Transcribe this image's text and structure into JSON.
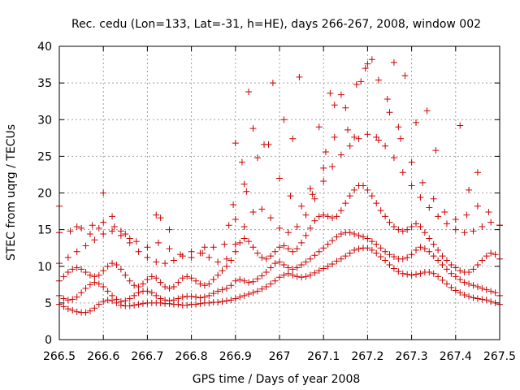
{
  "chart_data": {
    "type": "scatter",
    "title": "Rec. cedu (Lon=133, Lat=-31, h=HE), days 266-267, 2008, window 002",
    "xlabel": "GPS time / Days of year 2008",
    "ylabel": "STEC from uqrg / TECUs",
    "xlim": [
      266.5,
      267.5
    ],
    "ylim": [
      0,
      40
    ],
    "x_ticks": [
      "266.5",
      "266.6",
      "266.7",
      "266.8",
      "266.9",
      "267",
      "267.1",
      "267.2",
      "267.3",
      "267.4",
      "267.5"
    ],
    "y_ticks": [
      "0",
      "5",
      "10",
      "15",
      "20",
      "25",
      "30",
      "35",
      "40"
    ],
    "grid": true,
    "legend": "none",
    "marker": "plus",
    "color": "#cc0000",
    "series": [
      {
        "x": [
          266.5,
          266.51,
          266.52,
          266.53,
          266.54,
          266.55,
          266.56,
          266.57,
          266.58,
          266.59,
          266.6,
          266.61,
          266.62,
          266.63,
          266.64,
          266.65,
          266.66,
          266.67,
          266.68,
          266.69,
          266.7,
          266.71,
          266.72,
          266.73,
          266.74,
          266.75,
          266.76,
          266.77,
          266.78,
          266.79,
          266.8,
          266.81,
          266.82,
          266.83,
          266.84,
          266.85,
          266.86,
          266.87,
          266.88,
          266.89,
          266.9,
          266.91,
          266.92,
          266.93,
          266.94,
          266.95,
          266.96,
          266.97,
          266.98,
          266.99,
          267.0,
          267.01,
          267.02,
          267.03,
          267.04,
          267.05,
          267.06,
          267.07,
          267.08,
          267.09,
          267.1,
          267.11,
          267.12,
          267.13,
          267.14,
          267.15,
          267.16,
          267.17,
          267.18,
          267.19,
          267.2,
          267.21,
          267.22,
          267.23,
          267.24,
          267.25,
          267.26,
          267.27,
          267.28,
          267.29,
          267.3,
          267.31,
          267.32,
          267.33,
          267.34,
          267.35,
          267.36,
          267.37,
          267.38,
          267.39,
          267.4,
          267.41,
          267.42,
          267.43,
          267.44,
          267.45,
          267.46,
          267.47,
          267.48,
          267.49,
          267.5
        ],
        "y": [
          4.8,
          4.5,
          4.2,
          4.0,
          3.8,
          3.7,
          3.7,
          3.9,
          4.3,
          4.8,
          5.2,
          5.4,
          5.3,
          5.0,
          4.7,
          4.6,
          4.6,
          4.7,
          4.8,
          4.9,
          5.0,
          5.0,
          5.0,
          5.0,
          4.9,
          4.9,
          4.8,
          4.8,
          4.7,
          4.7,
          4.8,
          4.8,
          4.9,
          5.0,
          5.0,
          5.1,
          5.1,
          5.2,
          5.3,
          5.4,
          5.6,
          5.8,
          6.0,
          6.2,
          6.4,
          6.6,
          6.9,
          7.2,
          7.6,
          8.0,
          8.5,
          8.8,
          9.0,
          8.8,
          8.6,
          8.5,
          8.6,
          8.8,
          9.1,
          9.4,
          9.7,
          10.0,
          10.3,
          10.7,
          11.0,
          11.4,
          11.8,
          12.2,
          12.4,
          12.5,
          12.5,
          12.2,
          11.8,
          11.3,
          10.8,
          10.2,
          9.7,
          9.3,
          9.0,
          8.9,
          8.8,
          8.9,
          9.0,
          9.2,
          9.2,
          9.0,
          8.6,
          8.1,
          7.6,
          7.1,
          6.7,
          6.4,
          6.1,
          5.9,
          5.7,
          5.6,
          5.5,
          5.4,
          5.2,
          5.0,
          4.8
        ]
      },
      {
        "x": [
          266.5,
          266.51,
          266.52,
          266.53,
          266.54,
          266.55,
          266.56,
          266.57,
          266.58,
          266.59,
          266.6,
          266.61,
          266.62,
          266.63,
          266.64,
          266.65,
          266.66,
          266.67,
          266.68,
          266.69,
          266.7,
          266.71,
          266.72,
          266.73,
          266.74,
          266.75,
          266.76,
          266.77,
          266.78,
          266.79,
          266.8,
          266.81,
          266.82,
          266.83,
          266.84,
          266.85,
          266.86,
          266.87,
          266.88,
          266.89,
          266.9,
          266.91,
          266.92,
          266.93,
          266.94,
          266.95,
          266.96,
          266.97,
          266.98,
          266.99,
          267.0,
          267.01,
          267.02,
          267.03,
          267.04,
          267.05,
          267.06,
          267.07,
          267.08,
          267.09,
          267.1,
          267.11,
          267.12,
          267.13,
          267.14,
          267.15,
          267.16,
          267.17,
          267.18,
          267.19,
          267.2,
          267.21,
          267.22,
          267.23,
          267.24,
          267.25,
          267.26,
          267.27,
          267.28,
          267.29,
          267.3,
          267.31,
          267.32,
          267.33,
          267.34,
          267.35,
          267.36,
          267.37,
          267.38,
          267.39,
          267.4,
          267.41,
          267.42,
          267.43,
          267.44,
          267.45,
          267.46,
          267.47,
          267.48,
          267.49,
          267.5
        ],
        "y": [
          6.0,
          5.6,
          5.4,
          5.5,
          5.8,
          6.4,
          7.0,
          7.5,
          7.8,
          7.6,
          7.2,
          6.6,
          6.0,
          5.5,
          5.2,
          5.3,
          5.6,
          6.0,
          6.4,
          6.6,
          6.6,
          6.4,
          6.0,
          5.6,
          5.4,
          5.3,
          5.4,
          5.6,
          5.8,
          5.9,
          5.9,
          5.8,
          5.7,
          5.8,
          6.0,
          6.3,
          6.6,
          6.8,
          7.0,
          7.4,
          8.0,
          8.2,
          8.0,
          7.8,
          7.9,
          8.3,
          8.7,
          9.2,
          9.8,
          10.4,
          10.6,
          10.2,
          9.8,
          9.6,
          9.8,
          10.2,
          10.6,
          11.0,
          11.5,
          12.0,
          12.5,
          13.0,
          13.5,
          14.0,
          14.4,
          14.6,
          14.6,
          14.4,
          14.2,
          14.0,
          13.8,
          13.4,
          13.0,
          12.5,
          12.0,
          11.6,
          11.3,
          11.0,
          11.0,
          11.2,
          11.6,
          12.2,
          12.6,
          12.4,
          12.0,
          11.4,
          10.8,
          10.2,
          9.6,
          9.0,
          8.6,
          8.2,
          7.8,
          7.6,
          7.4,
          7.2,
          7.0,
          6.8,
          6.6,
          6.4,
          6.0
        ]
      },
      {
        "x": [
          266.5,
          266.51,
          266.52,
          266.53,
          266.54,
          266.55,
          266.56,
          266.57,
          266.58,
          266.59,
          266.6,
          266.61,
          266.62,
          266.63,
          266.64,
          266.65,
          266.66,
          266.67,
          266.68,
          266.69,
          266.7,
          266.71,
          266.72,
          266.73,
          266.74,
          266.75,
          266.76,
          266.77,
          266.78,
          266.79,
          266.8,
          266.81,
          266.82,
          266.83,
          266.84,
          266.85,
          266.86,
          266.87,
          266.88,
          266.89,
          266.9,
          266.91,
          266.92,
          266.93,
          266.94,
          266.95,
          266.96,
          266.97,
          266.98,
          266.99,
          267.0,
          267.01,
          267.02,
          267.03,
          267.04,
          267.05,
          267.06,
          267.07,
          267.08,
          267.09,
          267.1,
          267.11,
          267.12,
          267.13,
          267.14,
          267.15,
          267.16,
          267.17,
          267.18,
          267.19,
          267.2,
          267.21,
          267.22,
          267.23,
          267.24,
          267.25,
          267.26,
          267.27,
          267.28,
          267.29,
          267.3,
          267.31,
          267.32,
          267.33,
          267.34,
          267.35,
          267.36,
          267.37,
          267.38,
          267.39,
          267.4,
          267.41,
          267.42,
          267.43,
          267.44,
          267.45,
          267.46,
          267.47,
          267.48,
          267.49,
          267.5
        ],
        "y": [
          8.0,
          8.6,
          9.2,
          9.6,
          9.8,
          9.6,
          9.2,
          8.8,
          8.6,
          8.8,
          9.4,
          10.0,
          10.4,
          10.2,
          9.6,
          8.8,
          8.0,
          7.4,
          7.2,
          7.6,
          8.2,
          8.6,
          8.4,
          7.8,
          7.2,
          7.0,
          7.2,
          7.8,
          8.4,
          8.6,
          8.4,
          8.0,
          7.6,
          7.4,
          7.6,
          8.2,
          8.8,
          9.4,
          10.0,
          10.8,
          12.0,
          13.2,
          13.8,
          13.4,
          12.6,
          11.8,
          11.2,
          11.0,
          11.4,
          12.0,
          12.6,
          12.8,
          12.4,
          12.0,
          12.4,
          13.2,
          14.2,
          15.2,
          16.2,
          16.8,
          17.0,
          16.8,
          16.6,
          16.8,
          17.6,
          18.6,
          19.6,
          20.4,
          21.0,
          21.0,
          20.4,
          19.6,
          18.6,
          17.6,
          16.8,
          16.0,
          15.4,
          15.0,
          14.8,
          15.0,
          15.4,
          15.8,
          15.4,
          14.6,
          13.8,
          13.0,
          12.2,
          11.4,
          10.8,
          10.2,
          9.8,
          9.4,
          9.2,
          9.2,
          9.6,
          10.2,
          10.8,
          11.4,
          11.8,
          11.6,
          11.0
        ]
      },
      {
        "x": [
          266.5,
          266.52,
          266.54,
          266.56,
          266.58,
          266.6,
          266.62,
          266.64,
          266.66,
          266.68,
          266.7,
          266.72,
          266.74,
          266.76,
          266.78,
          266.8,
          266.82,
          266.84,
          266.86,
          266.88,
          266.9,
          266.92,
          266.94,
          266.96,
          266.98,
          267.0,
          267.02,
          267.04,
          267.06,
          267.08,
          267.1,
          267.12,
          267.14,
          267.16,
          267.18,
          267.2,
          267.22,
          267.24,
          267.26,
          267.28,
          267.3,
          267.32,
          267.34,
          267.36,
          267.38,
          267.4,
          267.42,
          267.44,
          267.46,
          267.48,
          267.5
        ],
        "y": [
          10.4,
          11.2,
          12.0,
          12.8,
          13.6,
          14.4,
          14.8,
          14.2,
          13.2,
          12.0,
          11.2,
          10.6,
          10.4,
          10.8,
          11.4,
          12.0,
          11.8,
          11.2,
          10.6,
          11.0,
          13.0,
          15.4,
          17.4,
          17.8,
          16.6,
          15.2,
          14.6,
          15.4,
          17.0,
          19.2,
          21.6,
          23.6,
          25.2,
          26.4,
          27.4,
          28.0,
          27.6,
          26.4,
          24.8,
          22.8,
          21.0,
          19.4,
          18.0,
          16.8,
          15.8,
          15.0,
          14.6,
          14.8,
          15.4,
          16.0,
          15.6
        ]
      },
      {
        "x": [
          266.5,
          266.525,
          266.55,
          266.575,
          266.6,
          266.625,
          266.65,
          266.675,
          266.7,
          266.725,
          266.75,
          266.775,
          266.8,
          266.825,
          266.85,
          266.875,
          266.9,
          266.925,
          266.95,
          266.975,
          267.0,
          267.025,
          267.05,
          267.075,
          267.1,
          267.125,
          267.15,
          267.175,
          267.2,
          267.225,
          267.25,
          267.275,
          267.3,
          267.325,
          267.35,
          267.375,
          267.4,
          267.425,
          267.45,
          267.475,
          267.5
        ],
        "y": [
          14.6,
          14.8,
          15.2,
          15.6,
          16.0,
          15.4,
          14.4,
          13.4,
          12.6,
          13.2,
          12.4,
          11.6,
          11.2,
          11.8,
          12.6,
          13.0,
          16.4,
          20.2,
          24.8,
          26.6,
          22.0,
          19.6,
          18.2,
          19.8,
          23.4,
          27.6,
          31.6,
          34.8,
          37.6,
          35.4,
          31.0,
          27.4,
          24.2,
          21.4,
          19.2,
          17.4,
          16.4,
          17.0,
          18.2,
          17.4,
          15.6
        ]
      },
      {
        "x": [
          266.5,
          266.54,
          266.57,
          266.59,
          266.6,
          266.62,
          266.64,
          266.66,
          266.72,
          266.73,
          266.75,
          266.83,
          266.885,
          266.895,
          266.9,
          266.915,
          266.92,
          266.93,
          266.94,
          266.965,
          266.985,
          267.01,
          267.03,
          267.045,
          267.07,
          267.09,
          267.105,
          267.115,
          267.125,
          267.14,
          267.155,
          267.17,
          267.185,
          267.195,
          267.21,
          267.225,
          267.245,
          267.26,
          267.27,
          267.285,
          267.31,
          267.335,
          267.355,
          267.41,
          267.43,
          267.45
        ],
        "y": [
          18.2,
          15.4,
          14.4,
          15.2,
          20.0,
          16.8,
          14.8,
          13.8,
          17.0,
          16.6,
          15.0,
          12.6,
          15.6,
          18.4,
          26.8,
          24.2,
          21.2,
          33.8,
          28.8,
          26.6,
          35.0,
          30.0,
          27.4,
          35.8,
          20.6,
          29.0,
          25.6,
          33.6,
          32.0,
          33.4,
          28.6,
          27.6,
          35.2,
          37.0,
          38.2,
          27.2,
          32.8,
          37.8,
          29.0,
          36.0,
          29.6,
          31.2,
          25.8,
          29.2,
          20.4,
          22.8
        ]
      }
    ]
  }
}
